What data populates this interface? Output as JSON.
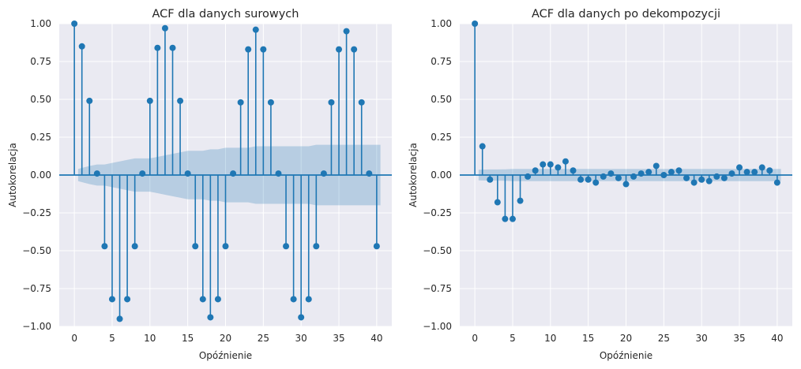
{
  "chart_data": [
    {
      "type": "stem",
      "title": "ACF dla danych surowych",
      "xlabel": "Opóźnienie",
      "ylabel": "Autokorelacja",
      "xlim": [
        -2,
        42
      ],
      "ylim": [
        -1.0,
        1.0
      ],
      "xticks": [
        0,
        5,
        10,
        15,
        20,
        25,
        30,
        35,
        40
      ],
      "xtick_labels": [
        "0",
        "5",
        "10",
        "15",
        "20",
        "25",
        "30",
        "35",
        "40"
      ],
      "yticks": [
        -1.0,
        -0.75,
        -0.5,
        -0.25,
        0.0,
        0.25,
        0.5,
        0.75,
        1.0
      ],
      "ytick_labels": [
        "−1.00",
        "−0.75",
        "−0.50",
        "−0.25",
        "0.00",
        "0.25",
        "0.50",
        "0.75",
        "1.00"
      ],
      "grid": true,
      "lags": [
        0,
        1,
        2,
        3,
        4,
        5,
        6,
        7,
        8,
        9,
        10,
        11,
        12,
        13,
        14,
        15,
        16,
        17,
        18,
        19,
        20,
        21,
        22,
        23,
        24,
        25,
        26,
        27,
        28,
        29,
        30,
        31,
        32,
        33,
        34,
        35,
        36,
        37,
        38,
        39,
        40
      ],
      "values": [
        1.0,
        0.85,
        0.49,
        0.01,
        -0.47,
        -0.82,
        -0.95,
        -0.82,
        -0.47,
        0.01,
        0.49,
        0.84,
        0.97,
        0.84,
        0.49,
        0.01,
        -0.47,
        -0.82,
        -0.94,
        -0.82,
        -0.47,
        0.01,
        0.48,
        0.83,
        0.96,
        0.83,
        0.48,
        0.01,
        -0.47,
        -0.82,
        -0.94,
        -0.82,
        -0.47,
        0.01,
        0.48,
        0.83,
        0.95,
        0.83,
        0.48,
        0.01,
        -0.47
      ],
      "confint": [
        0,
        0.04,
        0.06,
        0.07,
        0.07,
        0.08,
        0.09,
        0.1,
        0.11,
        0.11,
        0.11,
        0.12,
        0.13,
        0.14,
        0.15,
        0.16,
        0.16,
        0.16,
        0.17,
        0.17,
        0.18,
        0.18,
        0.18,
        0.18,
        0.19,
        0.19,
        0.19,
        0.19,
        0.19,
        0.19,
        0.19,
        0.19,
        0.2,
        0.2,
        0.2,
        0.2,
        0.2,
        0.2,
        0.2,
        0.2,
        0.2
      ],
      "color": "#1f77b4"
    },
    {
      "type": "stem",
      "title": "ACF dla danych po dekompozycji",
      "xlabel": "Opóźnienie",
      "ylabel": "Autokorelacja",
      "xlim": [
        -2,
        42
      ],
      "ylim": [
        -1.0,
        1.0
      ],
      "xticks": [
        0,
        5,
        10,
        15,
        20,
        25,
        30,
        35,
        40
      ],
      "xtick_labels": [
        "0",
        "5",
        "10",
        "15",
        "20",
        "25",
        "30",
        "35",
        "40"
      ],
      "yticks": [
        -1.0,
        -0.75,
        -0.5,
        -0.25,
        0.0,
        0.25,
        0.5,
        0.75,
        1.0
      ],
      "ytick_labels": [
        "−1.00",
        "−0.75",
        "−0.50",
        "−0.25",
        "0.00",
        "0.25",
        "0.50",
        "0.75",
        "1.00"
      ],
      "grid": true,
      "lags": [
        0,
        1,
        2,
        3,
        4,
        5,
        6,
        7,
        8,
        9,
        10,
        11,
        12,
        13,
        14,
        15,
        16,
        17,
        18,
        19,
        20,
        21,
        22,
        23,
        24,
        25,
        26,
        27,
        28,
        29,
        30,
        31,
        32,
        33,
        34,
        35,
        36,
        37,
        38,
        39,
        40
      ],
      "values": [
        1.0,
        0.19,
        -0.03,
        -0.18,
        -0.29,
        -0.29,
        -0.17,
        -0.01,
        0.03,
        0.07,
        0.07,
        0.05,
        0.09,
        0.03,
        -0.03,
        -0.03,
        -0.05,
        -0.01,
        0.01,
        -0.02,
        -0.06,
        -0.01,
        0.01,
        0.02,
        0.06,
        0.0,
        0.02,
        0.03,
        -0.02,
        -0.05,
        -0.03,
        -0.04,
        -0.01,
        -0.02,
        0.01,
        0.05,
        0.02,
        0.02,
        0.05,
        0.03,
        -0.05
      ],
      "confint": [
        0,
        0.035,
        0.037,
        0.037,
        0.038,
        0.04,
        0.04,
        0.04,
        0.04,
        0.04,
        0.04,
        0.04,
        0.04,
        0.04,
        0.04,
        0.04,
        0.04,
        0.04,
        0.04,
        0.04,
        0.04,
        0.04,
        0.04,
        0.04,
        0.04,
        0.04,
        0.04,
        0.04,
        0.04,
        0.04,
        0.04,
        0.04,
        0.04,
        0.04,
        0.04,
        0.04,
        0.04,
        0.04,
        0.04,
        0.04,
        0.04
      ],
      "color": "#1f77b4"
    }
  ]
}
